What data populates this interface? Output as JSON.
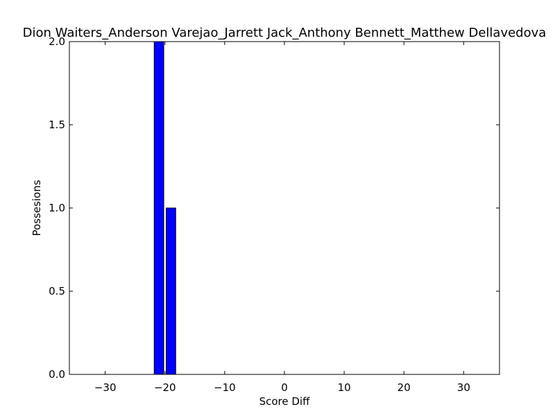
{
  "chart_data": {
    "type": "bar",
    "title": "Dion Waiters_Anderson Varejao_Jarrett Jack_Anthony Bennett_Matthew Dellavedova",
    "xlabel": "Score Diff",
    "ylabel": "Possesions",
    "xlim": [
      -36,
      36
    ],
    "ylim": [
      0,
      2
    ],
    "bar_width": 1.6,
    "x_ticks": [
      -30,
      -20,
      -10,
      0,
      10,
      20,
      30
    ],
    "x_tick_labels": [
      "−30",
      "−20",
      "−10",
      "0",
      "10",
      "20",
      "30"
    ],
    "y_ticks": [
      0,
      0.5,
      1,
      1.5,
      2
    ],
    "y_tick_labels": [
      "0.0",
      "0.5",
      "1.0",
      "1.5",
      "2.0"
    ],
    "grid": false,
    "bar_color": "#0000ff",
    "x": [
      -35,
      -34,
      -33,
      -32,
      -31,
      -30,
      -29,
      -28,
      -27,
      -26,
      -25,
      -24,
      -23,
      -22,
      -21,
      -20,
      -19,
      -18,
      -17,
      -16,
      -15,
      -14,
      -13,
      -12,
      -11,
      -10,
      -9,
      -8,
      -7,
      -6,
      -5,
      -4,
      -3,
      -2,
      -1,
      0,
      1,
      2,
      3,
      4,
      5,
      6,
      7,
      8,
      9,
      10,
      11,
      12,
      13,
      14,
      15,
      16,
      17,
      18,
      19,
      20,
      21,
      22,
      23,
      24,
      25,
      26,
      27,
      28,
      29,
      30,
      31,
      32,
      33,
      34,
      35
    ],
    "values": [
      0,
      0,
      0,
      0,
      0,
      0,
      0,
      0,
      0,
      0,
      0,
      0,
      0,
      0,
      2,
      0,
      1,
      0,
      0,
      0,
      0,
      0,
      0,
      0,
      0,
      0,
      0,
      0,
      0,
      0,
      0,
      0,
      0,
      0,
      0,
      0,
      0,
      0,
      0,
      0,
      0,
      0,
      0,
      0,
      0,
      0,
      0,
      0,
      0,
      0,
      0,
      0,
      0,
      0,
      0,
      0,
      0,
      0,
      0,
      0,
      0,
      0,
      0,
      0,
      0,
      0,
      0,
      0,
      0,
      0,
      0
    ]
  }
}
